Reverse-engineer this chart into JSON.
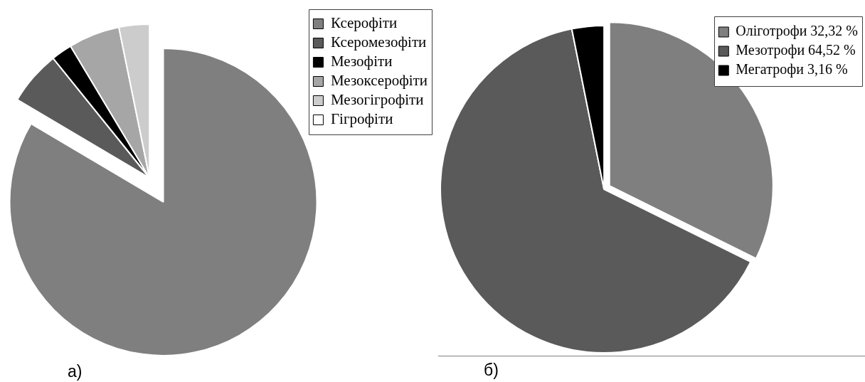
{
  "chart_data": [
    {
      "type": "pie",
      "categories": [
        "Ксерофіти",
        "Ксеромезофіти",
        "Мезофіти",
        "Мезоксерофіти",
        "Мезогігрофіти",
        "Гігрофіти"
      ],
      "values": [
        83.5,
        5.7,
        2.2,
        5.4,
        3.2,
        0
      ],
      "colors": [
        "#7f7f7f",
        "#5a5a5a",
        "#000000",
        "#a6a6a6",
        "#cccccc",
        "#ffffff"
      ],
      "legend": "top right",
      "annotations": [
        "а)"
      ]
    },
    {
      "type": "pie",
      "categories": [
        "Оліготрофи 32,32 %",
        "Мезотрофи 64,52 %",
        "Мегатрофи 3,16 %"
      ],
      "values": [
        32.32,
        64.52,
        3.16
      ],
      "colors": [
        "#7f7f7f",
        "#5a5a5a",
        "#000000"
      ],
      "legend": "top right",
      "annotations": [
        "б)"
      ]
    }
  ]
}
